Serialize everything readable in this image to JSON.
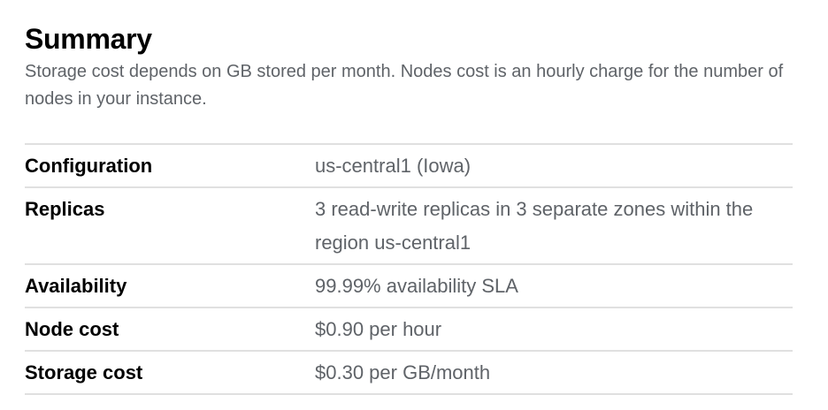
{
  "summary": {
    "title": "Summary",
    "description": "Storage cost depends on GB stored per month. Nodes cost is an hourly charge for the number of nodes in your instance.",
    "rows": [
      {
        "label": "Configuration",
        "value": "us-central1 (Iowa)"
      },
      {
        "label": "Replicas",
        "value": "3 read-write replicas in 3 separate zones within the region us-central1"
      },
      {
        "label": "Availability",
        "value": "99.99% availability SLA"
      },
      {
        "label": "Node cost",
        "value": "$0.90 per hour"
      },
      {
        "label": "Storage cost",
        "value": "$0.30 per GB/month"
      }
    ]
  }
}
